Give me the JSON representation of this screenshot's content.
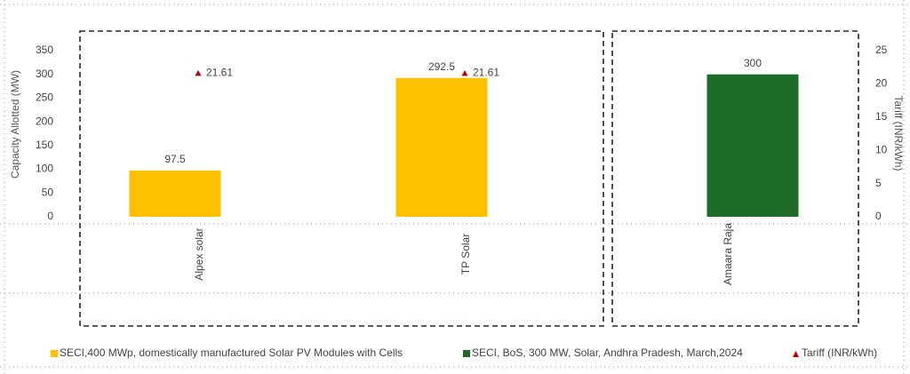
{
  "chart_data": {
    "type": "bar",
    "categories": [
      "Alpex solar",
      "TP Solar",
      "Amaara Raja"
    ],
    "series": [
      {
        "name": "SECI,400 MWp, domestically manufactured Solar PV Modules with Cells",
        "type": "bar",
        "color": "#ffc000",
        "values": [
          97.5,
          292.5,
          null
        ]
      },
      {
        "name": "SECI, BoS, 300 MW, Solar, Andhra Pradesh, March,2024",
        "type": "bar",
        "color": "#1e6b2a",
        "values": [
          null,
          null,
          300
        ]
      },
      {
        "name": "Tariff (INR/kWh)",
        "type": "scatter",
        "marker": "triangle",
        "axis": "y2",
        "color": "#c00000",
        "values": [
          21.61,
          21.61,
          null
        ]
      }
    ],
    "ylabel": "Capacity Allotted (MW)",
    "y2label": "Tariff (INR/kWh)",
    "ylim": [
      0,
      350
    ],
    "yticks": [
      0,
      50,
      100,
      150,
      200,
      250,
      300,
      350
    ],
    "y2lim": [
      0,
      25
    ],
    "y2ticks": [
      0,
      5,
      10,
      15,
      20,
      25
    ],
    "legend": "bottom"
  }
}
